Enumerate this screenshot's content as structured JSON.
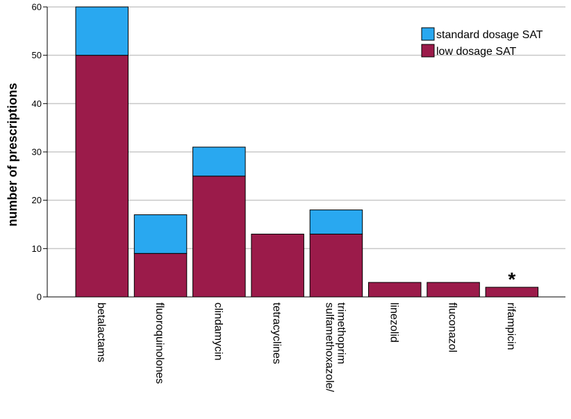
{
  "chart_data": {
    "type": "bar",
    "stacked": true,
    "title": "",
    "xlabel": "",
    "ylabel": "number of prescriptions",
    "ylim": [
      0,
      60
    ],
    "yticks": [
      0,
      10,
      20,
      30,
      40,
      50,
      60
    ],
    "grid": true,
    "legend_position": "top-right",
    "categories": [
      [
        "betalactams"
      ],
      [
        "fluoroquinolones"
      ],
      [
        "clindamycin"
      ],
      [
        "tetracyclines"
      ],
      [
        "sulfamethoxazole/",
        "trimethoprim"
      ],
      [
        "linezolid"
      ],
      [
        "fluconazol"
      ],
      [
        "rifampicin"
      ]
    ],
    "series": [
      {
        "name": "low dosage SAT",
        "color": "#9b1b4a",
        "values": [
          50,
          9,
          25,
          13,
          13,
          3,
          3,
          2
        ]
      },
      {
        "name": "standard dosage SAT",
        "color": "#29a8f0",
        "values": [
          10,
          8,
          6,
          0,
          5,
          0,
          0,
          0
        ]
      }
    ],
    "legend_order": [
      "standard dosage SAT",
      "low dosage SAT"
    ],
    "annotations": [
      {
        "category_index": 7,
        "text": "*"
      }
    ]
  }
}
